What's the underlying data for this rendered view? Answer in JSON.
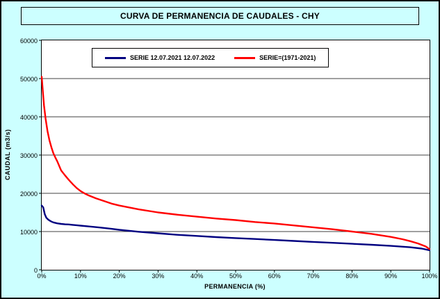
{
  "title": "CURVA DE PERMANENCIA DE CAUDALES - CHY",
  "colors": {
    "background": "#CCFFFF",
    "plot_background": "#FFFFFF",
    "grid": "#000000",
    "axis": "#000000",
    "series_blue": "#000080",
    "series_red": "#FF0000"
  },
  "chart_data": {
    "type": "line",
    "title": "CURVA DE PERMANENCIA DE CAUDALES - CHY",
    "xlabel": "PERMANENCIA (%)",
    "ylabel": "CAUDAL (m3/s)",
    "xlim": [
      0,
      100
    ],
    "ylim": [
      0,
      60000
    ],
    "grid": "horizontal",
    "legend_position": "top-inside",
    "x_tick_values": [
      0,
      10,
      20,
      30,
      40,
      50,
      60,
      70,
      80,
      90,
      100
    ],
    "x_ticks": [
      "0%",
      "10%",
      "20%",
      "30%",
      "40%",
      "50%",
      "60%",
      "70%",
      "80%",
      "90%",
      "100%"
    ],
    "y_ticks": [
      0,
      10000,
      20000,
      30000,
      40000,
      50000,
      60000
    ],
    "series": [
      {
        "id": "2021-2022",
        "name": "SERIE 12.07.2021 12.07.2022",
        "color": "#000080",
        "x": [
          0,
          0.4,
          0.8,
          1.2,
          1.6,
          2,
          2.5,
          3,
          4,
          5,
          6,
          7,
          8,
          9,
          10,
          12,
          15,
          18,
          20,
          25,
          30,
          35,
          40,
          45,
          50,
          55,
          60,
          65,
          70,
          75,
          80,
          85,
          90,
          95,
          98,
          100
        ],
        "y": [
          16800,
          16300,
          14500,
          13600,
          13200,
          12900,
          12600,
          12400,
          12150,
          12000,
          11900,
          11850,
          11750,
          11650,
          11550,
          11350,
          11050,
          10700,
          10450,
          9950,
          9550,
          9150,
          8850,
          8550,
          8300,
          8050,
          7800,
          7550,
          7300,
          7050,
          6800,
          6550,
          6250,
          5900,
          5550,
          5100
        ]
      },
      {
        "id": "1971-2021",
        "name": "SERIE=(1971-2021)",
        "color": "#FF0000",
        "x": [
          0,
          0.3,
          0.6,
          1,
          1.5,
          2,
          2.5,
          3,
          3.5,
          4,
          5,
          6,
          7,
          8,
          9,
          10,
          11,
          12,
          14,
          16,
          18,
          20,
          25,
          30,
          35,
          40,
          45,
          50,
          55,
          60,
          65,
          70,
          75,
          80,
          85,
          90,
          93,
          95,
          97,
          99,
          100
        ],
        "y": [
          50500,
          46500,
          43000,
          39500,
          36200,
          33800,
          32000,
          30500,
          29400,
          28400,
          26000,
          24700,
          23500,
          22400,
          21400,
          20600,
          20000,
          19500,
          18700,
          18000,
          17300,
          16800,
          15800,
          15000,
          14400,
          13900,
          13400,
          13000,
          12500,
          12100,
          11600,
          11100,
          10600,
          10000,
          9400,
          8600,
          8000,
          7500,
          6900,
          6100,
          5400
        ]
      }
    ]
  }
}
